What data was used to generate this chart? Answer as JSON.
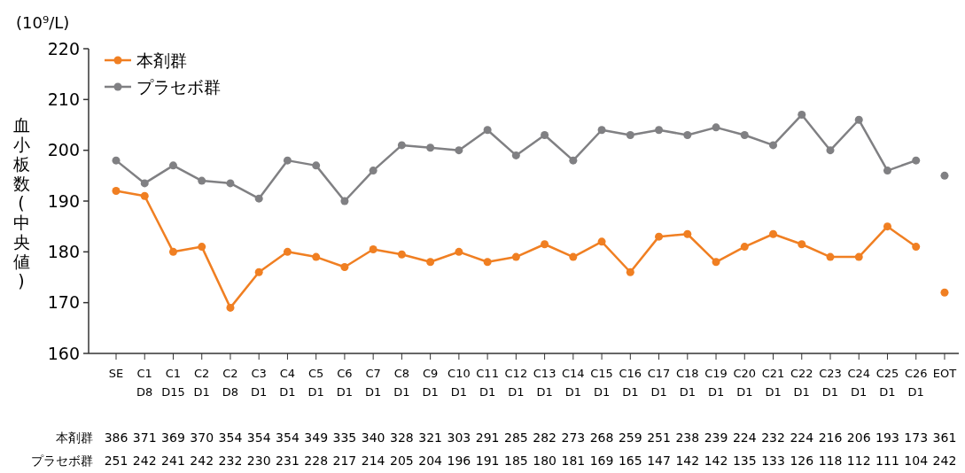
{
  "chart_data": {
    "type": "line",
    "ylabel": "血小板数(中央値)",
    "annotations": [
      "(10⁹/L)",
      "本剤群 386 371 369 370 354 354 354 349 335 340 328 321 303 291 285 282 273 268 259 251 238 239 224 232 224 216 206 193 173 361",
      "プラセボ群 251 242 241 242 232 230 231 228 217 214 205 204 196 191 185 180 181 169 165 147 142 142 135 133 126 118 112 111 104 242"
    ],
    "categories": [
      "SE",
      "C1\nD8",
      "C1\nD15",
      "C2\nD1",
      "C2\nD8",
      "C3\nD1",
      "C4\nD1",
      "C5\nD1",
      "C6\nD1",
      "C7\nD1",
      "C8\nD1",
      "C9\nD1",
      "C10\nD1",
      "C11\nD1",
      "C12\nD1",
      "C13\nD1",
      "C14\nD1",
      "C15\nD1",
      "C16\nD1",
      "C17\nD1",
      "C18\nD1",
      "C19\nD1",
      "C20\nD1",
      "C21\nD1",
      "C22\nD1",
      "C23\nD1",
      "C24\nD1",
      "C25\nD1",
      "C26\nD1",
      "EOT"
    ],
    "series": [
      {
        "name": "本剤群",
        "color": "#f07f22",
        "values": [
          192,
          191,
          180,
          181,
          169,
          176,
          180,
          179,
          177,
          180.5,
          179.5,
          178,
          180,
          178,
          179,
          181.5,
          179,
          182,
          176,
          183,
          183.5,
          178,
          181,
          183.5,
          181.5,
          179,
          179,
          185,
          181,
          null
        ]
      },
      {
        "name": "プラセボ群",
        "color": "#808083",
        "values": [
          198,
          193.5,
          197,
          194,
          193.5,
          190.5,
          198,
          197,
          190,
          196,
          201,
          200.5,
          200,
          204,
          199,
          203,
          198,
          204,
          203,
          204,
          203,
          204.5,
          203,
          201,
          207,
          200,
          206,
          196,
          198,
          null
        ]
      },
      {
        "type": "scatter",
        "color": "#f07f22",
        "values": [
          null,
          null,
          null,
          null,
          null,
          null,
          null,
          null,
          null,
          null,
          null,
          null,
          null,
          null,
          null,
          null,
          null,
          null,
          null,
          null,
          null,
          null,
          null,
          null,
          null,
          null,
          null,
          null,
          null,
          172
        ]
      },
      {
        "type": "scatter",
        "color": "#808083",
        "values": [
          null,
          null,
          null,
          null,
          null,
          null,
          null,
          null,
          null,
          null,
          null,
          null,
          null,
          null,
          null,
          null,
          null,
          null,
          null,
          null,
          null,
          null,
          null,
          null,
          null,
          null,
          null,
          null,
          null,
          195
        ]
      }
    ],
    "ylim": [
      160,
      220
    ],
    "yticks": [
      160,
      170,
      180,
      190,
      200,
      210,
      220
    ],
    "grid": false,
    "legend": "top left",
    "marker": "circle",
    "line_style": "solid"
  }
}
